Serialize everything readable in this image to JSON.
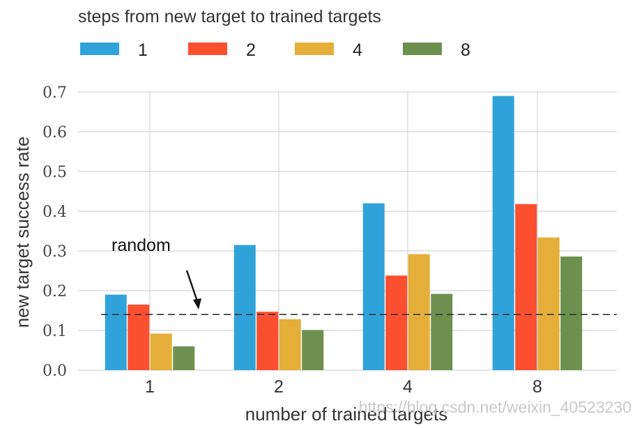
{
  "chart_data": {
    "type": "bar",
    "legend_title": "steps from new target to trained targets",
    "legend_position": "top",
    "xlabel": "number of trained targets",
    "ylabel": "new target success rate",
    "categories": [
      "1",
      "2",
      "4",
      "8"
    ],
    "ylim": [
      0,
      0.7
    ],
    "yticks": [
      "0.0",
      "0.1",
      "0.2",
      "0.3",
      "0.4",
      "0.5",
      "0.6",
      "0.7"
    ],
    "grid": true,
    "series": [
      {
        "name": "1",
        "color": "#30a2da",
        "values": [
          0.19,
          0.315,
          0.42,
          0.69
        ]
      },
      {
        "name": "2",
        "color": "#fc4f30",
        "values": [
          0.165,
          0.147,
          0.238,
          0.418
        ]
      },
      {
        "name": "4",
        "color": "#e5ae38",
        "values": [
          0.092,
          0.128,
          0.292,
          0.334
        ]
      },
      {
        "name": "8",
        "color": "#6d904f",
        "values": [
          0.06,
          0.101,
          0.192,
          0.286
        ]
      }
    ],
    "reference_line": {
      "value": 0.14,
      "style": "dashed"
    },
    "annotation": {
      "text": "random"
    }
  },
  "watermark": "https://blog.csdn.net/weixin_40523230"
}
